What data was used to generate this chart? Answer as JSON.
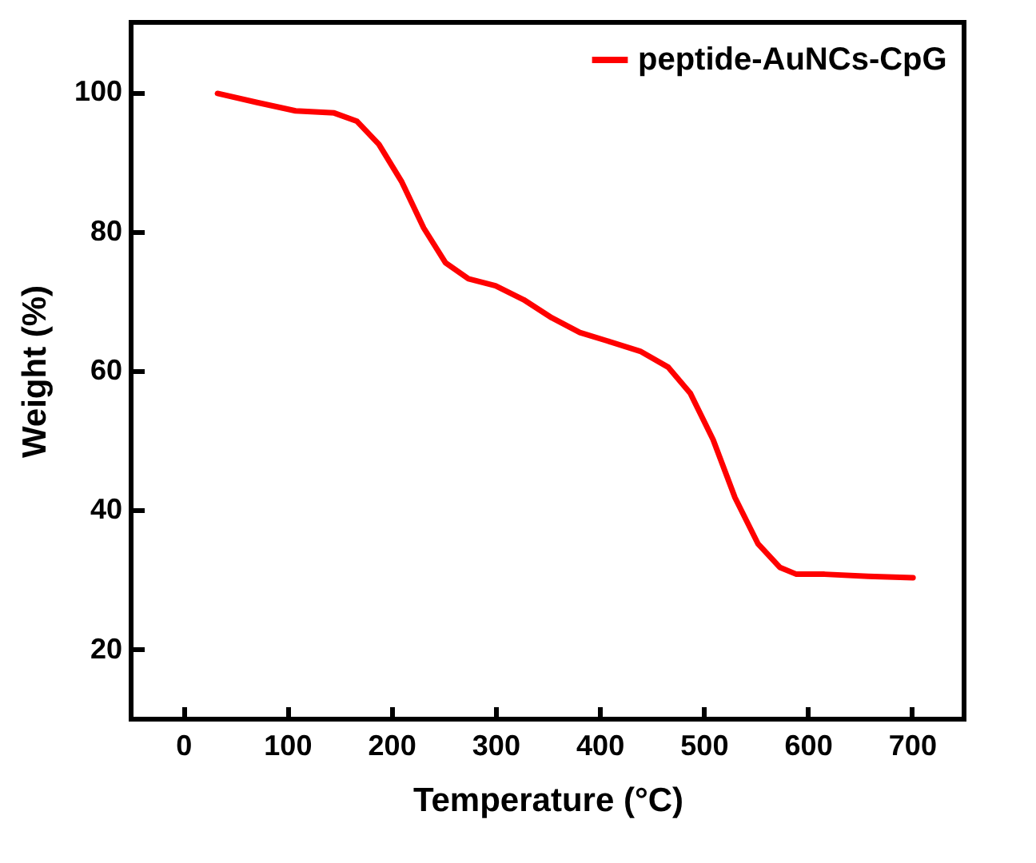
{
  "chart_data": {
    "type": "line",
    "xlabel": "Temperature (°C)",
    "ylabel": "Weight (%)",
    "x": [
      33,
      71,
      108,
      145,
      167,
      188,
      210,
      231,
      252,
      274,
      300,
      327,
      354,
      381,
      407,
      439,
      466,
      487,
      509,
      530,
      552,
      573,
      589,
      616,
      658,
      701
    ],
    "series": [
      {
        "name": "peptide-AuNCs-CpG",
        "color": "#ff0000",
        "values": [
          99.8,
          98.5,
          97.3,
          97.0,
          95.8,
          92.5,
          87.1,
          80.5,
          75.5,
          73.2,
          72.2,
          70.2,
          67.6,
          65.5,
          64.3,
          62.8,
          60.5,
          56.8,
          50.1,
          41.8,
          35.2,
          31.8,
          30.8,
          30.8,
          30.5,
          30.3
        ]
      }
    ],
    "xlim": [
      -50,
      750
    ],
    "xticks": [
      0,
      100,
      200,
      300,
      400,
      500,
      600,
      700
    ],
    "ylim": [
      10,
      110
    ],
    "yticks": [
      20,
      40,
      60,
      80,
      100
    ],
    "legend": "top right",
    "grid": false,
    "marker": "none",
    "line_style": "solid"
  }
}
